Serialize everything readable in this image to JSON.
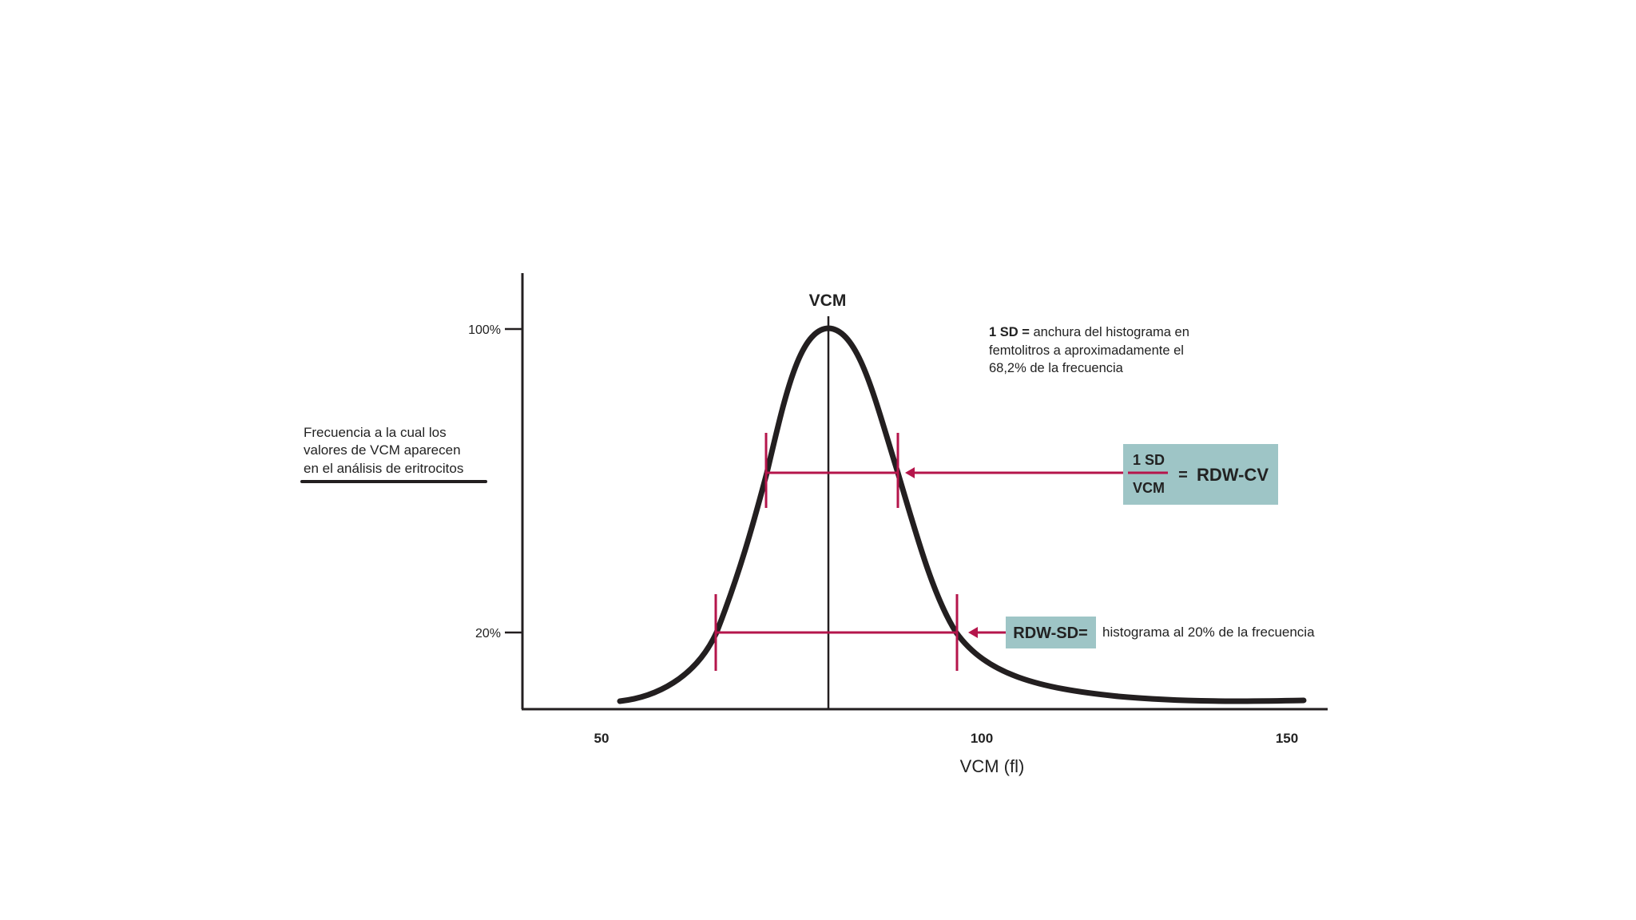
{
  "y_axis": {
    "note_lines": [
      "Frecuencia a la cual los",
      "valores de VCM aparecen",
      "en el análisis de eritrocitos"
    ],
    "tick_100": "100%",
    "tick_20": "20%"
  },
  "x_axis": {
    "title": "VCM (fl)",
    "ticks": [
      "50",
      "100",
      "150"
    ]
  },
  "mean_label": "VCM",
  "sd_note": {
    "bold": "1 SD =",
    "line1_rest": " anchura del histograma en",
    "line2": "femtolitros a aproximadamente el",
    "line3": "68,2% de la frecuencia"
  },
  "rdw_cv": {
    "numerator": "1 SD",
    "denominator": "VCM",
    "equals": "=",
    "label": "RDW-CV"
  },
  "rdw_sd": {
    "label": "RDW-SD=",
    "text": "histograma al 20% de la frecuencia"
  },
  "colors": {
    "curve": "#231f20",
    "marker": "#b5154b",
    "box": "#9ec5c6"
  },
  "curve": {
    "mean_fl": 80,
    "sd_level_percent": 60,
    "sd_width_fl": [
      72,
      89
    ],
    "rdw_sd_level_percent": 20,
    "rdw_sd_width_fl": [
      65,
      97
    ]
  }
}
